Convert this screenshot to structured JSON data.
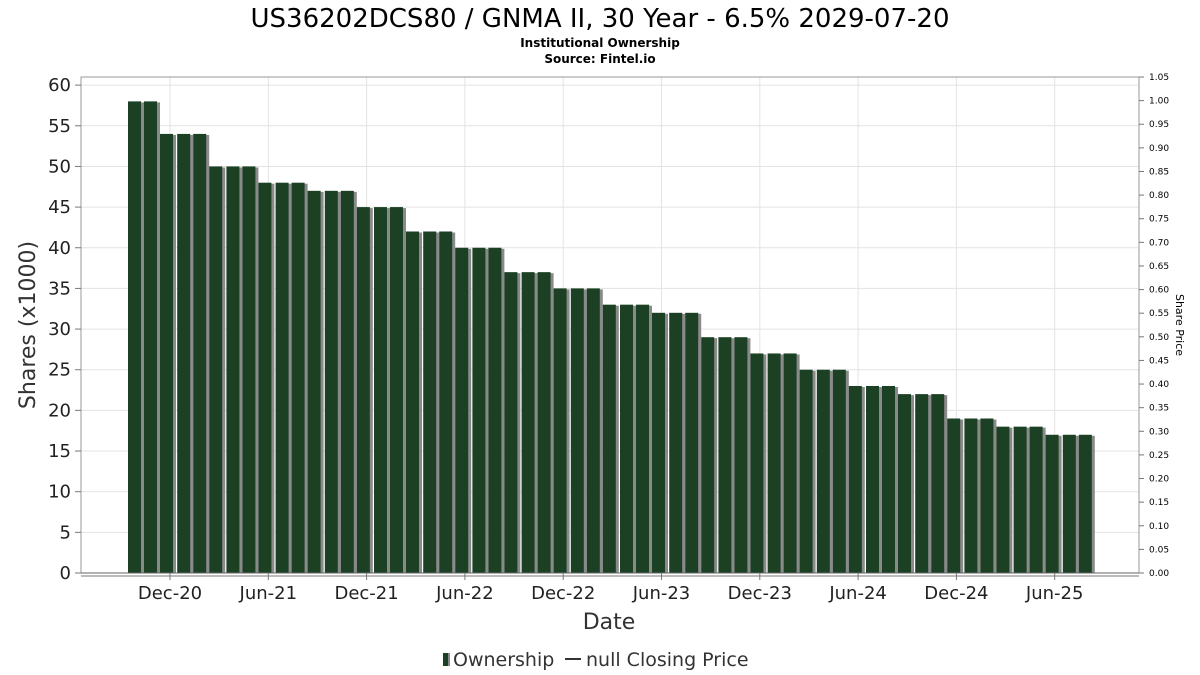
{
  "title": "US36202DCS80 / GNMA II, 30 Year - 6.5% 2029-07-20",
  "subtitle1": "Institutional Ownership",
  "subtitle2": "Source: Fintel.io",
  "colors": {
    "bar": "#1b4024",
    "bar_shadow": "#8a8a8a",
    "grid": "#e3e3e3"
  },
  "legend": {
    "ownership": "Ownership",
    "price": "null Closing Price"
  },
  "chart_data": {
    "type": "bar",
    "xlabel": "Date",
    "ylabel": "Shares (x1000)",
    "y2label": "Share Price",
    "ylim": [
      0,
      61
    ],
    "y2lim": [
      0,
      1.05
    ],
    "yticks": [
      "0",
      "5",
      "10",
      "15",
      "20",
      "25",
      "30",
      "35",
      "40",
      "45",
      "50",
      "55",
      "60"
    ],
    "y2ticks": [
      "0.00",
      "0.05",
      "0.10",
      "0.15",
      "0.20",
      "0.25",
      "0.30",
      "0.35",
      "0.40",
      "0.45",
      "0.50",
      "0.55",
      "0.60",
      "0.65",
      "0.70",
      "0.75",
      "0.80",
      "0.85",
      "0.90",
      "0.95",
      "1.00",
      "1.05"
    ],
    "xticks": [
      "Dec-20",
      "Jun-21",
      "Dec-21",
      "Jun-22",
      "Dec-22",
      "Jun-23",
      "Dec-23",
      "Jun-24",
      "Dec-24",
      "Jun-25"
    ],
    "series": [
      {
        "name": "Ownership",
        "values": [
          58,
          58,
          54,
          54,
          54,
          50,
          50,
          50,
          48,
          48,
          48,
          47,
          47,
          47,
          45,
          45,
          45,
          42,
          42,
          42,
          40,
          40,
          40,
          37,
          37,
          37,
          35,
          35,
          35,
          33,
          33,
          33,
          32,
          32,
          32,
          29,
          29,
          29,
          27,
          27,
          27,
          25,
          25,
          25,
          23,
          23,
          23,
          22,
          22,
          22,
          19,
          19,
          19,
          18,
          18,
          18,
          17,
          17,
          17
        ]
      }
    ]
  }
}
